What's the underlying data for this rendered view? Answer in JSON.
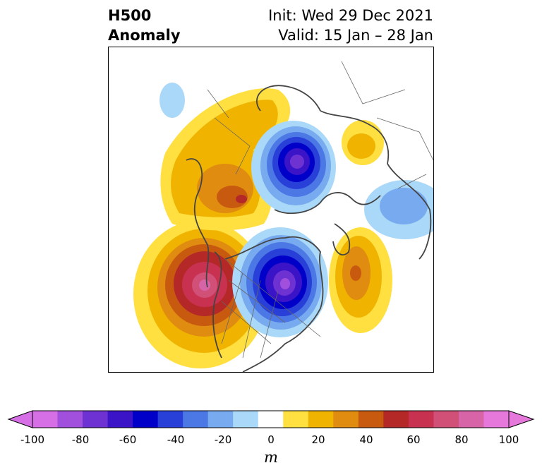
{
  "title": {
    "left_line1": "H500",
    "left_line2": "Anomaly",
    "init": "Init: Wed 29 Dec 2021",
    "valid": "Valid: 15 Jan – 28 Jan"
  },
  "colorbar": {
    "units": "m",
    "ticks": [
      "-100",
      "-80",
      "-60",
      "-40",
      "-20",
      "0",
      "20",
      "40",
      "60",
      "80",
      "100"
    ],
    "levels": [
      -100,
      -90,
      -80,
      -70,
      -60,
      -50,
      -40,
      -30,
      -20,
      -10,
      10,
      20,
      30,
      40,
      50,
      60,
      70,
      80,
      90,
      100
    ],
    "colors": [
      "#d66ee6",
      "#a050dc",
      "#6e32d2",
      "#3c14c8",
      "#0000c8",
      "#2840d8",
      "#4c78e6",
      "#78aaf0",
      "#aad8f8",
      "#ffffff",
      "#ffe040",
      "#f0b400",
      "#e08c10",
      "#c85a10",
      "#b42828",
      "#c83250",
      "#d05078",
      "#d864a8",
      "#e678dc"
    ],
    "extend_min_color": "#d66ee6",
    "extend_max_color": "#e678dc"
  },
  "map": {
    "projection": "north-polar-stereographic",
    "variable": "500 hPa geopotential height anomaly"
  }
}
